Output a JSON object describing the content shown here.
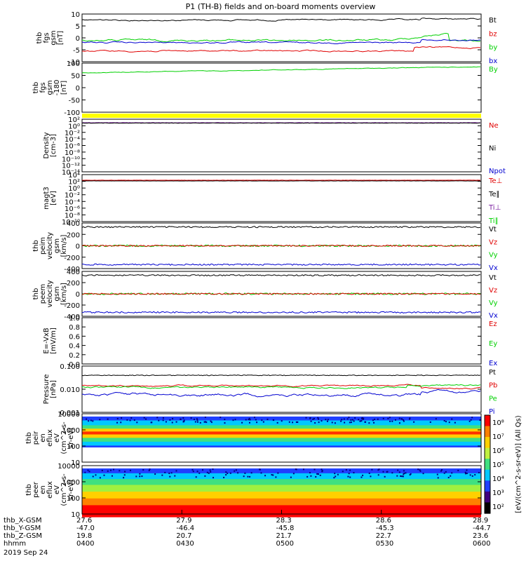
{
  "title": "P1 (TH-B) fields and on-board moments overview",
  "colors": {
    "black": "#000000",
    "red": "#e00000",
    "green": "#00d000",
    "blue": "#0000d0",
    "purple": "#7a1fa0",
    "yellow": "#ffff00",
    "cyan": "#00c8c8"
  },
  "chart_data": {
    "type": "line",
    "x_time_labels": [
      "0400",
      "0430",
      "0500",
      "0530",
      "0600"
    ],
    "date_label": "2019 Sep 24",
    "ephemeris": [
      {
        "label": "thb_X-GSM",
        "values": [
          "27.6",
          "27.9",
          "28.3",
          "28.6",
          "28.9"
        ]
      },
      {
        "label": "thb_Y-GSM",
        "values": [
          "-47.0",
          "-46.4",
          "-45.8",
          "-45.3",
          "-44.7"
        ]
      },
      {
        "label": "thb_Z-GSM",
        "values": [
          "19.8",
          "20.7",
          "21.7",
          "22.7",
          "23.6"
        ]
      },
      {
        "label": "hhmm",
        "values": [
          "0400",
          "0430",
          "0500",
          "0530",
          "0600"
        ]
      }
    ],
    "panels": [
      {
        "ylabel": [
          "thb",
          "fgs",
          "gsm",
          "[nT]"
        ],
        "ylim": [
          -10,
          10
        ],
        "ticks": [
          "10",
          "5",
          "0",
          "-5",
          "-10"
        ],
        "legend": [
          {
            "text": "Bt",
            "color": "#000000"
          },
          {
            "text": "bz",
            "color": "#e00000"
          },
          {
            "text": "by",
            "color": "#00d000"
          },
          {
            "text": "bx",
            "color": "#0000d0"
          }
        ]
      },
      {
        "ylabel": [
          "thb",
          "fgs",
          "gsm",
          "-180",
          "[nT]"
        ],
        "ylim": [
          -125,
          100
        ],
        "ticks": [
          "100",
          "50",
          "0",
          "-50",
          "-100"
        ],
        "legend": [
          {
            "text": "By",
            "color": "#00d000"
          }
        ]
      },
      {
        "ylabel": [
          "Density",
          "[cm-3]"
        ],
        "log": true,
        "ticks": [
          "10²",
          "10⁰",
          "10⁻²",
          "10⁻⁴",
          "10⁻⁶",
          "10⁻⁸",
          "10⁻¹⁰",
          "10⁻¹²",
          "10⁻¹⁴"
        ],
        "legend": [
          {
            "text": "Ne",
            "color": "#e00000"
          },
          {
            "text": "Ni",
            "color": "#000000"
          },
          {
            "text": "Npot",
            "color": "#0000d0"
          }
        ]
      },
      {
        "ylabel": [
          "magt3",
          "[eV]"
        ],
        "log": true,
        "ticks": [
          "10⁴",
          "10²",
          "10⁰",
          "10⁻²",
          "10⁻⁴",
          "10⁻⁶",
          "10⁻⁸",
          "10⁻¹⁰"
        ],
        "legend": [
          {
            "text": "Te⊥",
            "color": "#e00000"
          },
          {
            "text": "Te∥",
            "color": "#000000"
          },
          {
            "text": "Ti⊥",
            "color": "#7a1fa0"
          },
          {
            "text": "Ti∥",
            "color": "#00d000"
          }
        ]
      },
      {
        "ylabel": [
          "thb",
          "peim",
          "velocity",
          "gsm",
          "[km/s]"
        ],
        "ylim": [
          -400,
          400
        ],
        "ticks": [
          "400",
          "200",
          "0",
          "-200",
          "-400"
        ],
        "legend": [
          {
            "text": "Vt",
            "color": "#000000"
          },
          {
            "text": "Vz",
            "color": "#e00000"
          },
          {
            "text": "Vy",
            "color": "#00d000"
          },
          {
            "text": "Vx",
            "color": "#0000d0"
          }
        ]
      },
      {
        "ylabel": [
          "thb",
          "peem",
          "velocity",
          "gsm",
          "[km/s]"
        ],
        "ylim": [
          -400,
          400
        ],
        "ticks": [
          "400",
          "200",
          "0",
          "-200",
          "-400"
        ],
        "legend": [
          {
            "text": "Vt",
            "color": "#000000"
          },
          {
            "text": "Vz",
            "color": "#e00000"
          },
          {
            "text": "Vy",
            "color": "#00d000"
          },
          {
            "text": "Vx",
            "color": "#0000d0"
          }
        ]
      },
      {
        "ylabel": [
          "E=-VxB",
          "[mV/m]"
        ],
        "ylim": [
          0,
          1
        ],
        "ticks": [
          "1.0",
          "0.8",
          "0.6",
          "0.4",
          "0.2",
          "0.0"
        ],
        "legend": [
          {
            "text": "Ez",
            "color": "#e00000"
          },
          {
            "text": "Ey",
            "color": "#00d000"
          },
          {
            "text": "Ex",
            "color": "#0000d0"
          }
        ]
      },
      {
        "ylabel": [
          "Pressure",
          "[nPa]"
        ],
        "log": true,
        "ticks": [
          "0.100",
          "0.010",
          "0.001"
        ],
        "legend": [
          {
            "text": "Pt",
            "color": "#000000"
          },
          {
            "text": "Pb",
            "color": "#e00000"
          },
          {
            "text": "Pe",
            "color": "#00d000"
          },
          {
            "text": "Pi",
            "color": "#0000d0"
          }
        ]
      },
      {
        "ylabel": [
          "thb",
          "peir",
          "en",
          "eflux",
          "eV",
          "(cm^2-s-",
          "sr-eV)"
        ],
        "log": true,
        "ticks": [
          "10000",
          "1000",
          "100",
          "10"
        ]
      },
      {
        "ylabel": [
          "thb",
          "peer",
          "en",
          "eflux",
          "eV",
          "(cm^2-s-",
          "sr-eV)"
        ],
        "log": true,
        "ticks": [
          "10000",
          "1000",
          "100",
          "10"
        ]
      }
    ],
    "colorbar_ticks": [
      "10⁸",
      "10⁷",
      "10⁶",
      "10⁵",
      "10⁴",
      "10³",
      "10²"
    ],
    "colorbar_label": "[eV/(cm^2-s-sr-eV)] (All Qs)"
  }
}
